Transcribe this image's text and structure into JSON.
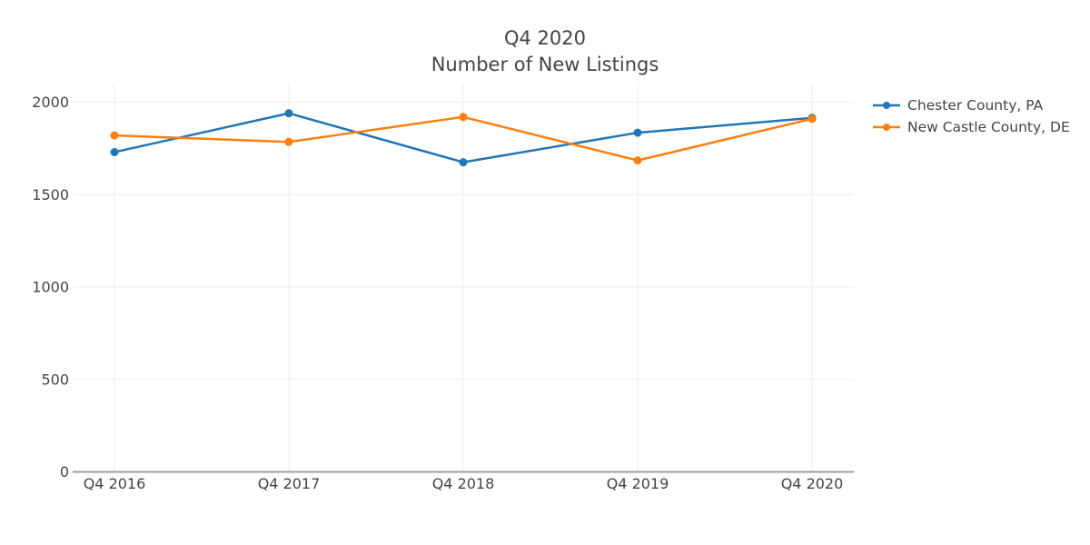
{
  "title": {
    "line1": "Q4 2020",
    "line2": "Number of New Listings"
  },
  "colors": {
    "series_blue": "#1f77b4",
    "series_orange": "#ff7f0e",
    "gridline": "#eeeeee",
    "axis_line": "#9e9e9e",
    "text": "#444444",
    "background": "#ffffff"
  },
  "legend": {
    "items": [
      {
        "label": "Chester County, PA",
        "color": "#1f77b4"
      },
      {
        "label": "New Castle County, DE",
        "color": "#ff7f0e"
      }
    ]
  },
  "chart_data": {
    "type": "line",
    "title": "Q4 2020",
    "subtitle": "Number of New Listings",
    "categories": [
      "Q4 2016",
      "Q4 2017",
      "Q4 2018",
      "Q4 2019",
      "Q4 2020"
    ],
    "series": [
      {
        "name": "Chester County, PA",
        "color": "#1f77b4",
        "values": [
          1730,
          1940,
          1675,
          1835,
          1915
        ]
      },
      {
        "name": "New Castle County, DE",
        "color": "#ff7f0e",
        "values": [
          1820,
          1785,
          1920,
          1685,
          1910
        ]
      }
    ],
    "xlabel": "",
    "ylabel": "",
    "yticks": [
      0,
      500,
      1000,
      1500,
      2000
    ],
    "ylim": [
      0,
      2100
    ],
    "grid": true,
    "legend_position": "top-right-outside",
    "marker": "circle"
  }
}
